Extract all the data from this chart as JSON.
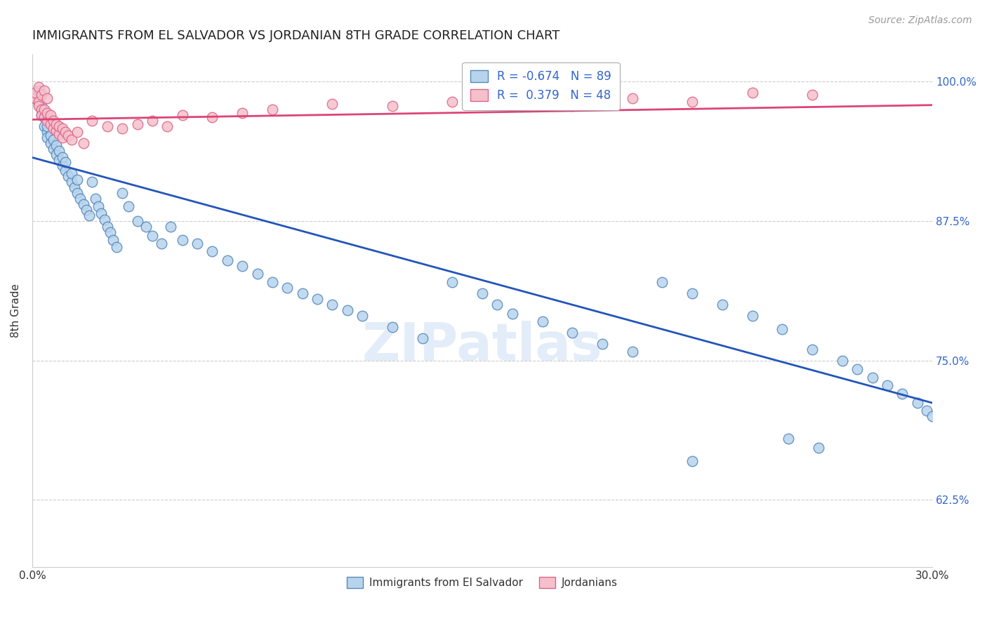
{
  "title": "IMMIGRANTS FROM EL SALVADOR VS JORDANIAN 8TH GRADE CORRELATION CHART",
  "source": "Source: ZipAtlas.com",
  "ylabel": "8th Grade",
  "legend_blue_R": "-0.674",
  "legend_blue_N": "89",
  "legend_pink_R": "0.379",
  "legend_pink_N": "48",
  "legend_label_blue": "Immigrants from El Salvador",
  "legend_label_pink": "Jordanians",
  "blue_color": "#b8d4ed",
  "blue_edge": "#5588bb",
  "pink_color": "#f5c0cc",
  "pink_edge": "#dd6688",
  "blue_line_color": "#2255bb",
  "pink_line_color": "#dd4477",
  "xmin": 0.0,
  "xmax": 0.3,
  "ymin": 0.565,
  "ymax": 1.025,
  "yticks": [
    1.0,
    0.875,
    0.75,
    0.625
  ],
  "ytick_labels": [
    "100.0%",
    "87.5%",
    "75.0%",
    "62.5%"
  ],
  "blue_line_y0": 0.932,
  "blue_line_y1": 0.712,
  "pink_line_y0": 0.966,
  "pink_line_y1": 0.979,
  "blue_x": [
    0.001,
    0.002,
    0.002,
    0.003,
    0.003,
    0.003,
    0.004,
    0.004,
    0.005,
    0.005,
    0.005,
    0.006,
    0.006,
    0.007,
    0.007,
    0.008,
    0.008,
    0.009,
    0.009,
    0.01,
    0.01,
    0.011,
    0.011,
    0.012,
    0.013,
    0.013,
    0.014,
    0.015,
    0.015,
    0.016,
    0.017,
    0.018,
    0.019,
    0.02,
    0.021,
    0.022,
    0.023,
    0.024,
    0.025,
    0.026,
    0.027,
    0.028,
    0.03,
    0.032,
    0.035,
    0.038,
    0.04,
    0.043,
    0.046,
    0.05,
    0.055,
    0.06,
    0.065,
    0.07,
    0.075,
    0.08,
    0.085,
    0.09,
    0.095,
    0.1,
    0.105,
    0.11,
    0.12,
    0.13,
    0.14,
    0.15,
    0.155,
    0.16,
    0.17,
    0.18,
    0.19,
    0.2,
    0.21,
    0.22,
    0.23,
    0.24,
    0.25,
    0.26,
    0.27,
    0.275,
    0.28,
    0.285,
    0.29,
    0.295,
    0.298,
    0.3,
    0.252,
    0.262,
    0.22
  ],
  "blue_y": [
    0.985,
    0.98,
    0.992,
    0.978,
    0.975,
    0.97,
    0.968,
    0.96,
    0.955,
    0.95,
    0.96,
    0.945,
    0.952,
    0.94,
    0.948,
    0.935,
    0.943,
    0.93,
    0.938,
    0.925,
    0.932,
    0.92,
    0.928,
    0.915,
    0.91,
    0.918,
    0.905,
    0.9,
    0.912,
    0.895,
    0.89,
    0.885,
    0.88,
    0.91,
    0.895,
    0.888,
    0.882,
    0.876,
    0.87,
    0.865,
    0.858,
    0.852,
    0.9,
    0.888,
    0.875,
    0.87,
    0.862,
    0.855,
    0.87,
    0.858,
    0.855,
    0.848,
    0.84,
    0.835,
    0.828,
    0.82,
    0.815,
    0.81,
    0.805,
    0.8,
    0.795,
    0.79,
    0.78,
    0.77,
    0.82,
    0.81,
    0.8,
    0.792,
    0.785,
    0.775,
    0.765,
    0.758,
    0.82,
    0.81,
    0.8,
    0.79,
    0.778,
    0.76,
    0.75,
    0.742,
    0.735,
    0.728,
    0.72,
    0.712,
    0.705,
    0.7,
    0.68,
    0.672,
    0.66
  ],
  "pink_x": [
    0.001,
    0.001,
    0.002,
    0.002,
    0.002,
    0.003,
    0.003,
    0.003,
    0.004,
    0.004,
    0.004,
    0.005,
    0.005,
    0.005,
    0.006,
    0.006,
    0.007,
    0.007,
    0.008,
    0.008,
    0.009,
    0.009,
    0.01,
    0.01,
    0.011,
    0.012,
    0.013,
    0.015,
    0.017,
    0.02,
    0.025,
    0.03,
    0.035,
    0.04,
    0.045,
    0.05,
    0.06,
    0.07,
    0.08,
    0.1,
    0.12,
    0.14,
    0.16,
    0.18,
    0.2,
    0.22,
    0.24,
    0.26
  ],
  "pink_y": [
    0.985,
    0.99,
    0.982,
    0.978,
    0.995,
    0.975,
    0.97,
    0.988,
    0.968,
    0.975,
    0.992,
    0.965,
    0.972,
    0.985,
    0.962,
    0.97,
    0.958,
    0.965,
    0.956,
    0.962,
    0.953,
    0.96,
    0.95,
    0.958,
    0.955,
    0.952,
    0.948,
    0.955,
    0.945,
    0.965,
    0.96,
    0.958,
    0.962,
    0.965,
    0.96,
    0.97,
    0.968,
    0.972,
    0.975,
    0.98,
    0.978,
    0.982,
    0.98,
    0.978,
    0.985,
    0.982,
    0.99,
    0.988
  ]
}
